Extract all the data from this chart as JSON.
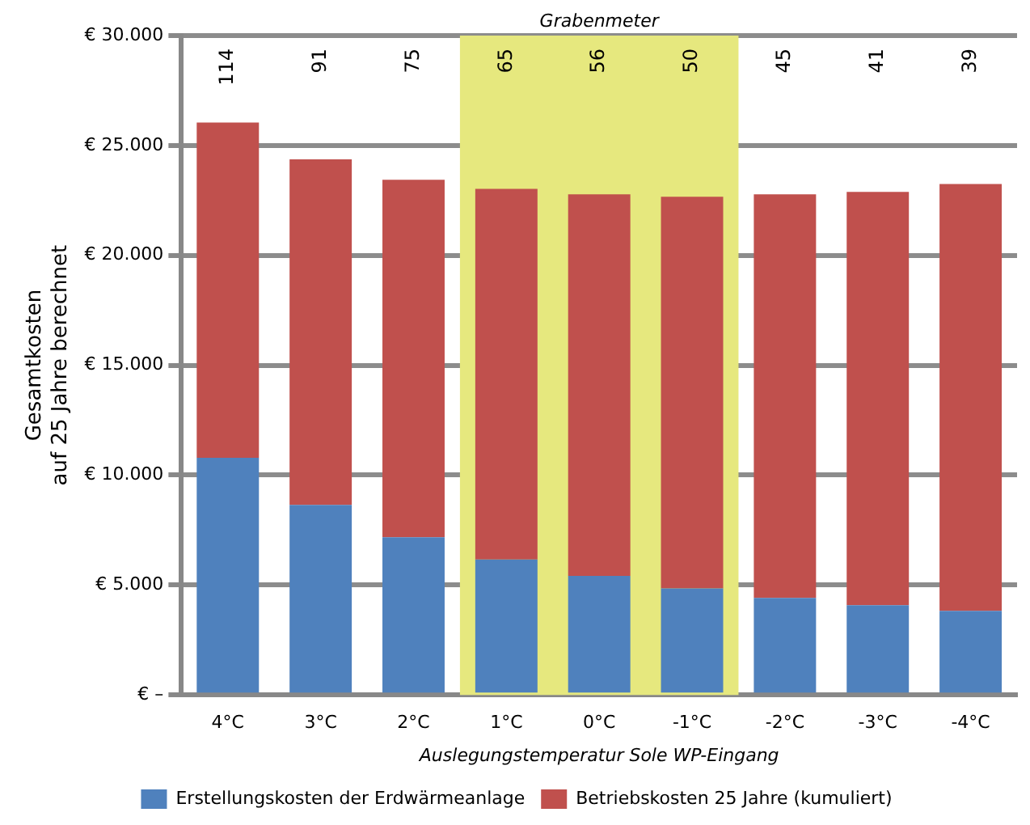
{
  "chart_data": {
    "type": "bar",
    "stacked": true,
    "xlabel": "Auslegungstemperatur Sole WP-Eingang",
    "ylabel": "Gesamtkosten\nauf 25 Jahre berechnet",
    "categories": [
      "4°C",
      "3°C",
      "2°C",
      "1°C",
      "0°C",
      "-1°C",
      "-2°C",
      "-3°C",
      "-4°C"
    ],
    "series": [
      {
        "name": "Erstellungskosten der Erdwärmeanlage",
        "color": "#4f81bd",
        "values": [
          10790,
          8650,
          7170,
          6160,
          5420,
          4850,
          4410,
          4080,
          3830
        ]
      },
      {
        "name": "Betriebskosten 25 Jahre (kumuliert)",
        "color": "#c0504d",
        "values": [
          15250,
          15720,
          16270,
          16870,
          17360,
          17820,
          18370,
          18810,
          19420
        ]
      }
    ],
    "ylim": [
      0,
      30000
    ],
    "yticks": [
      {
        "value": 0,
        "label": "€ –"
      },
      {
        "value": 5000,
        "label": "€ 5.000"
      },
      {
        "value": 10000,
        "label": "€ 10.000"
      },
      {
        "value": 15000,
        "label": "€ 15.000"
      },
      {
        "value": 20000,
        "label": "€ 20.000"
      },
      {
        "value": 25000,
        "label": "€ 25.000"
      },
      {
        "value": 30000,
        "label": "€ 30.000"
      }
    ],
    "grid": "y",
    "legend": "bottom",
    "bands": [
      {
        "axis": "x",
        "from": "1°C",
        "to": "-1°C",
        "label": "Grabenmeter",
        "color": "#e6e87e"
      }
    ],
    "annotations": [
      "114",
      "91",
      "75",
      "65",
      "56",
      "50",
      "45",
      "41",
      "39"
    ]
  }
}
